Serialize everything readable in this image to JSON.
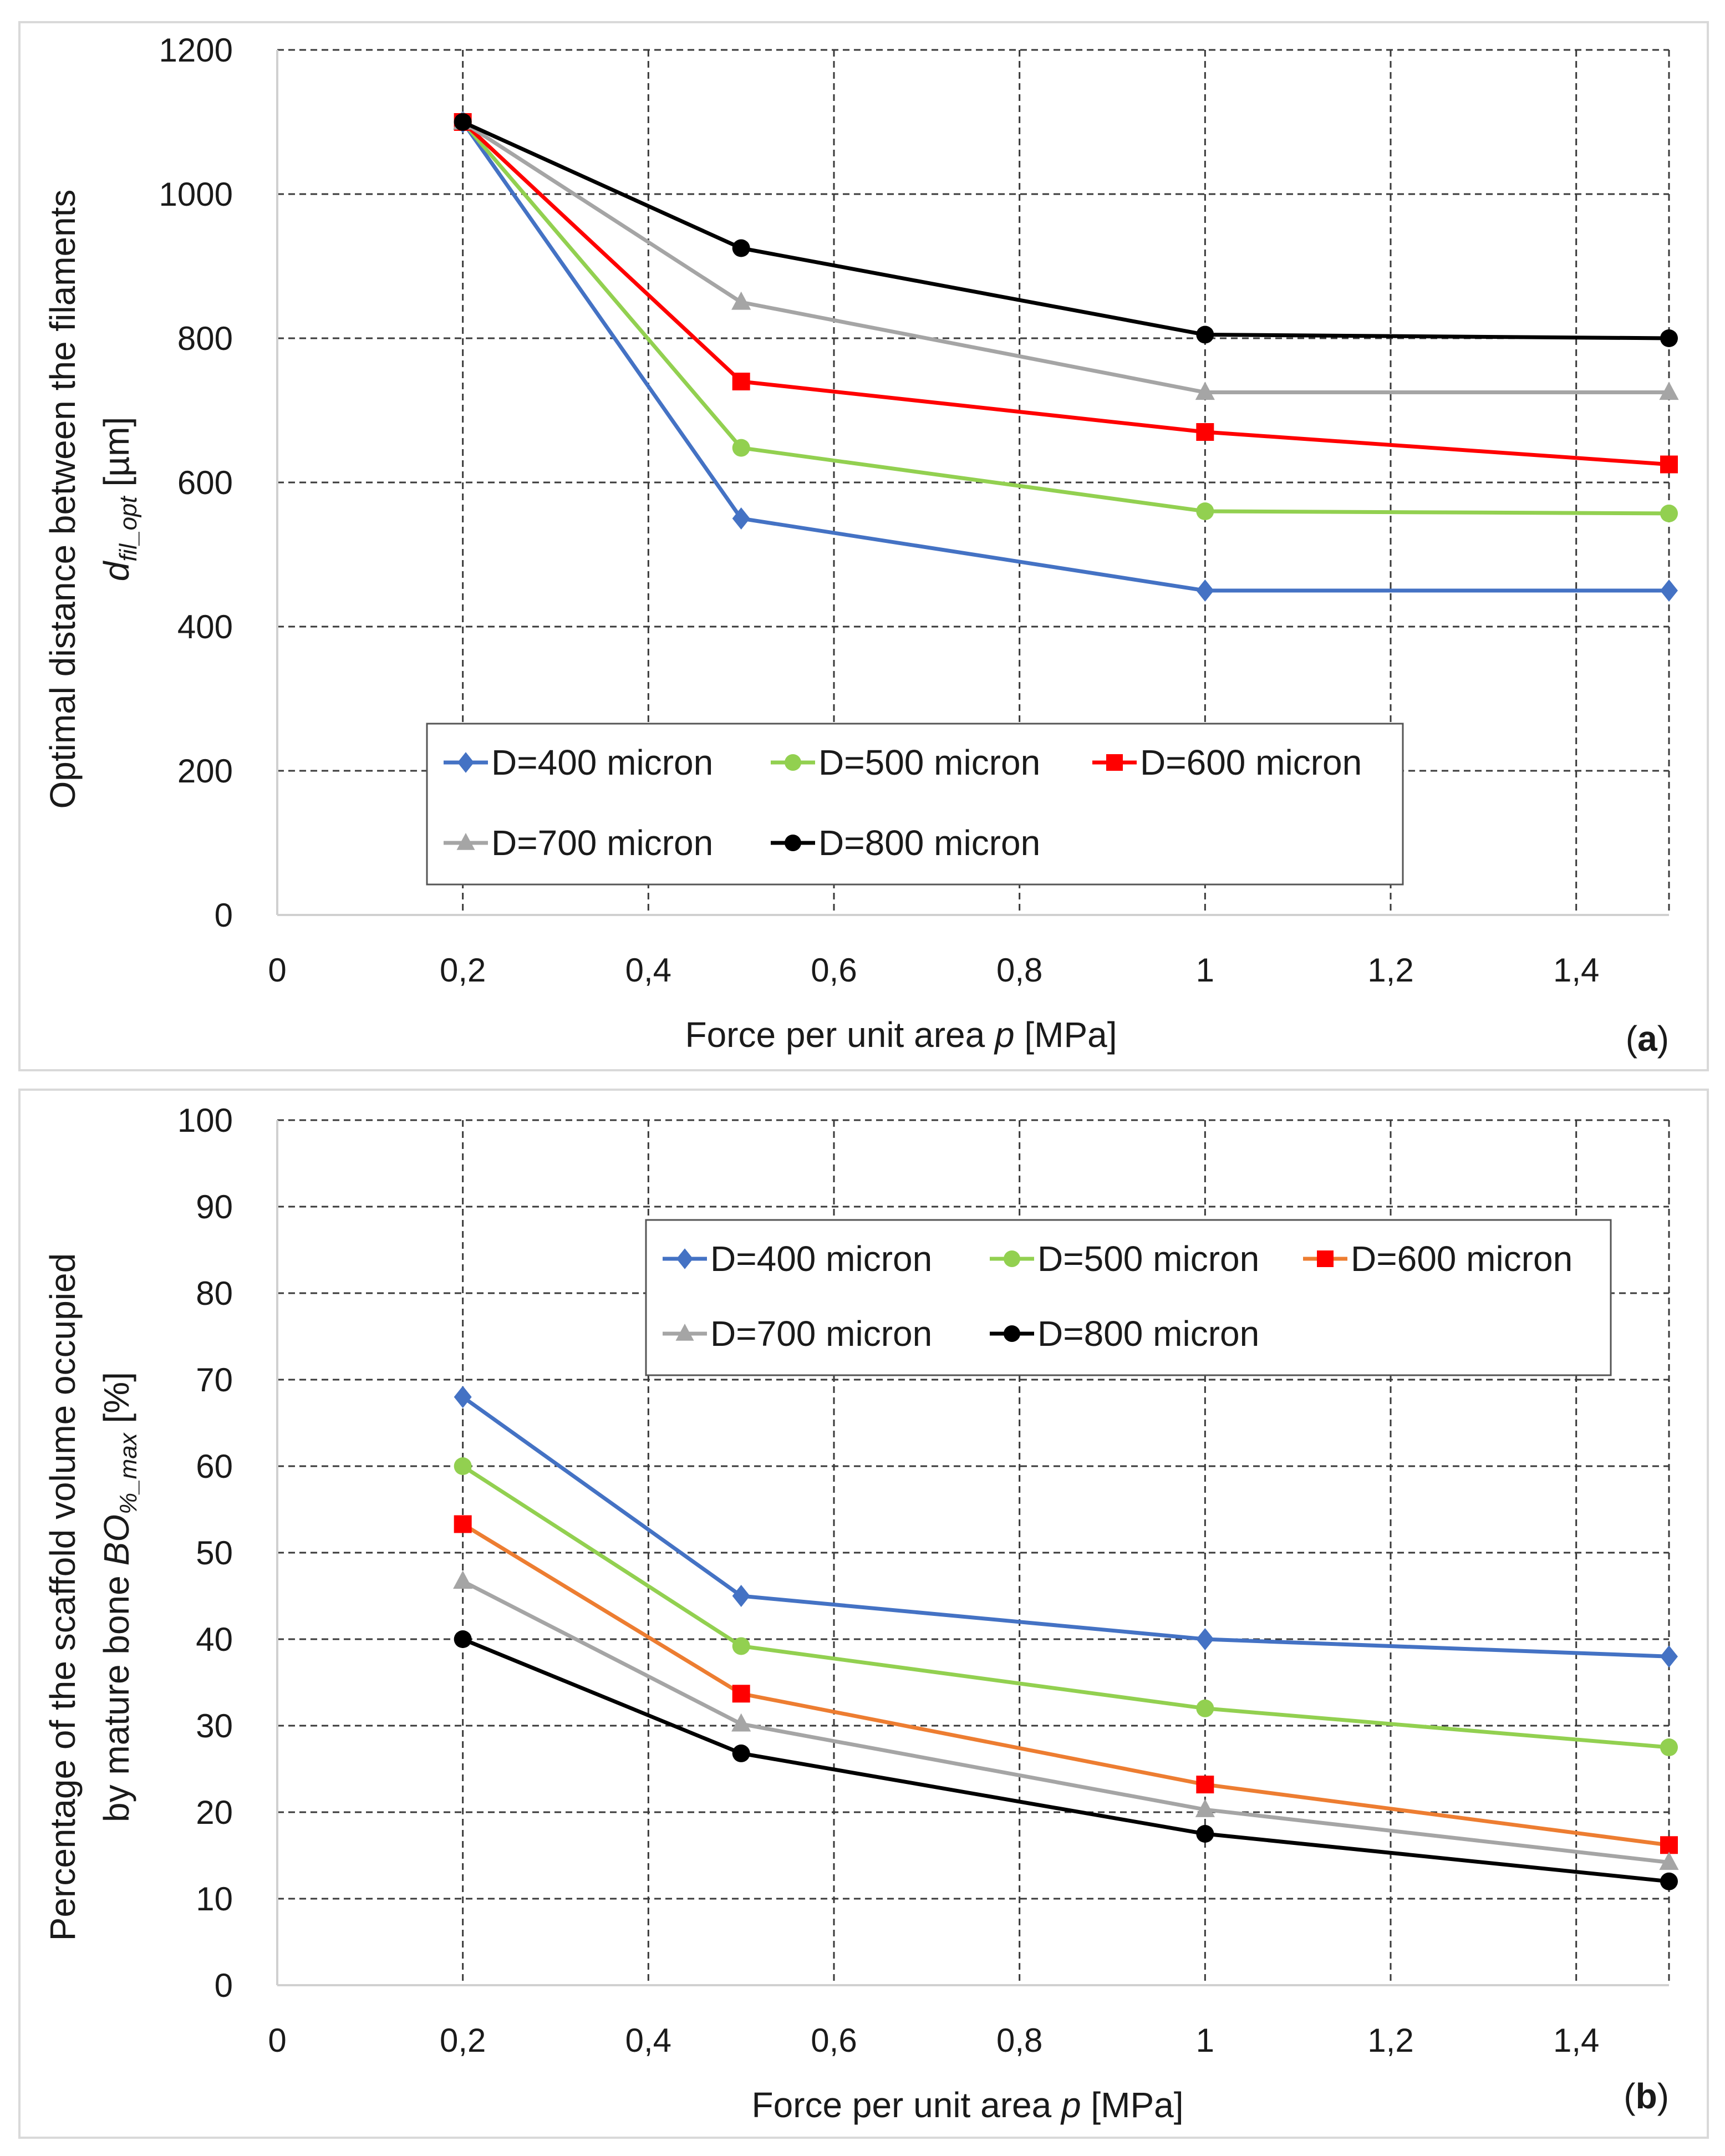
{
  "chart_data": [
    {
      "type": "line",
      "panel": "(a)",
      "panel_letter": "a",
      "xlabel": "Force per unit area p [MPa]",
      "ylabel_line1": "Optimal distance between the filaments",
      "ylabel_line2": "d_fil_opt [µm]",
      "xlim": [
        0,
        1.5
      ],
      "ylim": [
        0,
        1200
      ],
      "x_ticks": [
        0,
        0.2,
        0.4,
        0.6,
        0.8,
        1,
        1.2,
        1.4
      ],
      "x_tick_labels": [
        "0",
        "0,2",
        "0,4",
        "0,6",
        "0,8",
        "1",
        "1,2",
        "1,4"
      ],
      "y_ticks": [
        0,
        200,
        400,
        600,
        800,
        1000,
        1200
      ],
      "y_tick_labels": [
        "0",
        "200",
        "400",
        "600",
        "800",
        "1000",
        "1200"
      ],
      "grid": true,
      "legend_position": "lower-center",
      "x": [
        0.2,
        0.5,
        1,
        1.5
      ],
      "series": [
        {
          "name": "D=400 micron",
          "values": [
            1100,
            550,
            450,
            450
          ],
          "color": "#4472C4",
          "marker": "diamond"
        },
        {
          "name": "D=500 micron",
          "values": [
            1100,
            648,
            560,
            557
          ],
          "color": "#92D050",
          "marker": "circle"
        },
        {
          "name": "D=600 micron",
          "values": [
            1100,
            740,
            670,
            625
          ],
          "color": "#FF0000",
          "marker": "square",
          "line_color": "#FF0000"
        },
        {
          "name": "D=700 micron",
          "values": [
            1100,
            850,
            725,
            725
          ],
          "color": "#A5A5A5",
          "marker": "triangle"
        },
        {
          "name": "D=800 micron",
          "values": [
            1100,
            925,
            805,
            800
          ],
          "color": "#000000",
          "marker": "circle"
        }
      ]
    },
    {
      "type": "line",
      "panel": "(b)",
      "panel_letter": "b",
      "xlabel": "Force per unit area p [MPa]",
      "ylabel_line1": "Percentage of the scaffold volume occupied",
      "ylabel_line2": "by mature bone BO%_max [%]",
      "xlim": [
        0,
        1.5
      ],
      "ylim": [
        0,
        100
      ],
      "x_ticks": [
        0,
        0.2,
        0.4,
        0.6,
        0.8,
        1,
        1.2,
        1.4
      ],
      "x_tick_labels": [
        "0",
        "0,2",
        "0,4",
        "0,6",
        "0,8",
        "1",
        "1,2",
        "1,4"
      ],
      "y_ticks": [
        0,
        10,
        20,
        30,
        40,
        50,
        60,
        70,
        80,
        90,
        100
      ],
      "y_tick_labels": [
        "0",
        "10",
        "20",
        "30",
        "40",
        "50",
        "60",
        "70",
        "80",
        "90",
        "100"
      ],
      "grid": true,
      "legend_position": "upper-right",
      "x": [
        0.2,
        0.5,
        1,
        1.5
      ],
      "series": [
        {
          "name": "D=400 micron",
          "values": [
            68,
            45,
            40,
            38
          ],
          "color": "#4472C4",
          "marker": "diamond"
        },
        {
          "name": "D=500 micron",
          "values": [
            60,
            39.2,
            32,
            27.5
          ],
          "color": "#92D050",
          "marker": "circle"
        },
        {
          "name": "D=600 micron",
          "values": [
            53.3,
            33.7,
            23.2,
            16.2
          ],
          "color": "#FF0000",
          "marker": "square",
          "line_color": "#ED7D31"
        },
        {
          "name": "D=700 micron",
          "values": [
            46.7,
            30.2,
            20.3,
            14.2
          ],
          "color": "#A5A5A5",
          "marker": "triangle"
        },
        {
          "name": "D=800 micron",
          "values": [
            40,
            26.8,
            17.5,
            12
          ],
          "color": "#000000",
          "marker": "circle"
        }
      ]
    }
  ]
}
